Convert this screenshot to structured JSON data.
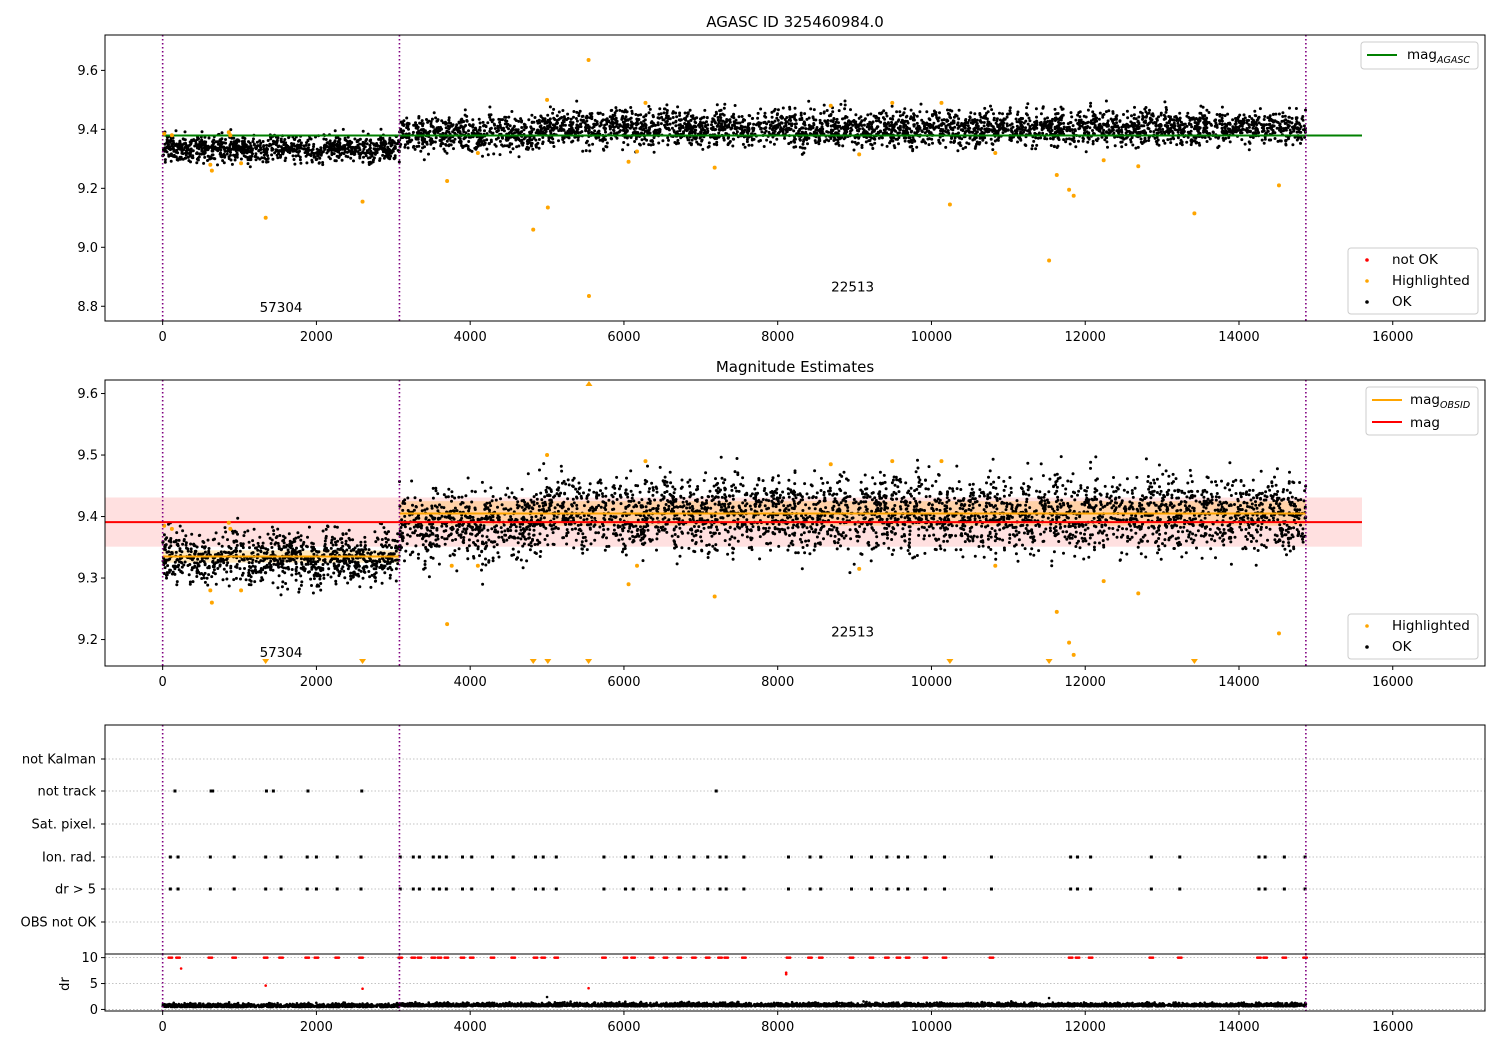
{
  "chart_data": [
    {
      "type": "scatter",
      "title": "AGASC ID 325460984.0",
      "xlim": [
        -750,
        17200
      ],
      "ylim": [
        8.75,
        9.72
      ],
      "x_ticks": [
        0,
        2000,
        4000,
        6000,
        8000,
        10000,
        12000,
        14000,
        16000
      ],
      "y_ticks": [
        8.8,
        9.0,
        9.2,
        9.4,
        9.6
      ],
      "y_tick_labels": [
        "8.8",
        "9.0",
        "9.2",
        "9.4",
        "9.6"
      ],
      "grid": false,
      "obs_boundaries": [
        0,
        3080,
        14870
      ],
      "obs_labels": [
        {
          "text": "57304",
          "x": 1540,
          "y": 8.78
        },
        {
          "text": "22513",
          "x": 8975,
          "y": 8.85
        }
      ],
      "lines": [
        {
          "name_main": "mag",
          "name_sub": "AGASC",
          "color": "#008000",
          "x": [
            0,
            15600
          ],
          "y": [
            9.379,
            9.379
          ]
        }
      ],
      "ok_segments": [
        {
          "x0": 0,
          "x1": 3080,
          "center": 9.335,
          "spread": 0.022
        },
        {
          "x0": 3080,
          "x1": 4800,
          "center": 9.385,
          "spread": 0.03
        },
        {
          "x0": 4800,
          "x1": 14870,
          "center": 9.405,
          "spread": 0.03
        }
      ],
      "highlighted": {
        "color": "#ffa500",
        "x": [
          20,
          120,
          620,
          640,
          860,
          880,
          1020,
          1340,
          2600,
          3700,
          4100,
          4820,
          5000,
          5010,
          5540,
          5545,
          6060,
          6170,
          6280,
          7180,
          8690,
          9060,
          9490,
          10130,
          10240,
          10830,
          11530,
          11630,
          11790,
          11850,
          12240,
          12690,
          13420,
          14520
        ],
        "y": [
          9.385,
          9.38,
          9.28,
          9.26,
          9.39,
          9.38,
          9.285,
          9.1,
          9.155,
          9.225,
          9.32,
          9.06,
          9.5,
          9.135,
          9.635,
          8.835,
          9.29,
          9.325,
          9.49,
          9.27,
          9.48,
          9.315,
          9.49,
          9.49,
          9.145,
          9.32,
          8.955,
          9.245,
          9.195,
          9.175,
          9.295,
          9.275,
          9.115,
          9.21
        ]
      },
      "legends": [
        {
          "position": "upper-right",
          "entries": [
            {
              "label_main": "mag",
              "label_sub": "AGASC",
              "kind": "line",
              "color": "#008000"
            }
          ]
        },
        {
          "position": "lower-right",
          "entries": [
            {
              "label_main": "not OK",
              "kind": "marker",
              "color": "#ff0000"
            },
            {
              "label_main": "Highlighted",
              "kind": "marker",
              "color": "#ffa500"
            },
            {
              "label_main": "OK",
              "kind": "marker",
              "color": "#000000"
            }
          ]
        }
      ]
    },
    {
      "type": "scatter",
      "title": "Magnitude Estimates",
      "xlim": [
        -750,
        17200
      ],
      "ylim": [
        9.157,
        9.622
      ],
      "x_ticks": [
        0,
        2000,
        4000,
        6000,
        8000,
        10000,
        12000,
        14000,
        16000
      ],
      "y_ticks": [
        9.2,
        9.3,
        9.4,
        9.5,
        9.6
      ],
      "y_tick_labels": [
        "9.2",
        "9.3",
        "9.4",
        "9.5",
        "9.6"
      ],
      "grid": false,
      "obs_boundaries": [
        0,
        3080,
        14870
      ],
      "obs_labels": [
        {
          "text": "57304",
          "x": 1540,
          "y": 9.172
        },
        {
          "text": "22513",
          "x": 8975,
          "y": 9.205
        }
      ],
      "bands": [
        {
          "color": "#ff0000",
          "opacity": 0.12,
          "x0": -750,
          "x1": 15600,
          "y0": 9.351,
          "y1": 9.431
        },
        {
          "color": "#ffa500",
          "opacity": 0.25,
          "x0": 0,
          "x1": 3080,
          "y0": 9.325,
          "y1": 9.345
        },
        {
          "color": "#ffa500",
          "opacity": 0.25,
          "x0": 3080,
          "x1": 14870,
          "y0": 9.385,
          "y1": 9.425
        }
      ],
      "lines": [
        {
          "name_main": "mag",
          "color": "#ff0000",
          "x": [
            -750,
            15600
          ],
          "y": [
            9.391,
            9.391
          ]
        },
        {
          "name_main": "mag",
          "name_sub": "OBSID",
          "color": "#ffa500",
          "x": [
            0,
            3080
          ],
          "y": [
            9.335,
            9.335
          ]
        },
        {
          "name_main": "mag",
          "name_sub": "OBSID",
          "color": "#ffa500",
          "x": [
            3080,
            14870
          ],
          "y": [
            9.405,
            9.405
          ]
        }
      ],
      "ok_segments": [
        {
          "x0": 0,
          "x1": 3080,
          "center": 9.333,
          "spread": 0.02
        },
        {
          "x0": 3080,
          "x1": 4800,
          "center": 9.385,
          "spread": 0.03
        },
        {
          "x0": 4800,
          "x1": 14870,
          "center": 9.405,
          "spread": 0.03
        }
      ],
      "highlighted": {
        "color": "#ffa500",
        "x": [
          20,
          120,
          620,
          640,
          860,
          880,
          1020,
          3700,
          3760,
          4100,
          5000,
          6060,
          6170,
          6280,
          7180,
          8690,
          9060,
          9490,
          10130,
          10830,
          11630,
          11790,
          11850,
          12240,
          12690,
          14520
        ],
        "y": [
          9.385,
          9.38,
          9.28,
          9.26,
          9.39,
          9.38,
          9.28,
          9.225,
          9.32,
          9.32,
          9.5,
          9.29,
          9.32,
          9.49,
          9.27,
          9.485,
          9.315,
          9.49,
          9.49,
          9.32,
          9.245,
          9.195,
          9.175,
          9.295,
          9.275,
          9.21
        ]
      },
      "off_scale_low": [
        1340,
        2600,
        4820,
        5010,
        5540,
        10240,
        11530,
        13420
      ],
      "off_scale_high": [
        5545
      ],
      "legends": [
        {
          "position": "upper-right",
          "entries": [
            {
              "label_main": "mag",
              "label_sub": "OBSID",
              "kind": "line",
              "color": "#ffa500"
            },
            {
              "label_main": "mag",
              "kind": "line",
              "color": "#ff0000"
            }
          ]
        },
        {
          "position": "lower-right",
          "entries": [
            {
              "label_main": "Highlighted",
              "kind": "marker",
              "color": "#ffa500"
            },
            {
              "label_main": "OK",
              "kind": "marker",
              "color": "#000000"
            }
          ]
        }
      ]
    },
    {
      "type": "scatter",
      "title": "",
      "xlim": [
        -750,
        17200
      ],
      "categories": [
        "not Kalman",
        "not track",
        "Sat. pixel.",
        "Ion. rad.",
        "dr > 5",
        "OBS not OK"
      ],
      "grid": true,
      "obs_boundaries": [
        0,
        3080,
        14870
      ],
      "flags": {
        "not Kalman": [],
        "not track": [
          160,
          630,
          650,
          1350,
          1440,
          1890,
          2590,
          7200
        ],
        "Sat. pixel.": [],
        "Ion. rad.": [
          100,
          200,
          620,
          930,
          1340,
          1540,
          1880,
          2000,
          2270,
          2580,
          3090,
          3260,
          3340,
          3520,
          3600,
          3690,
          3900,
          4020,
          4290,
          4560,
          4850,
          4950,
          5120,
          5740,
          6020,
          6120,
          6360,
          6540,
          6720,
          6910,
          7090,
          7250,
          7330,
          7560,
          8140,
          8420,
          8560,
          8960,
          9220,
          9420,
          9570,
          9690,
          9920,
          10170,
          10780,
          11810,
          11900,
          12070,
          12860,
          13230,
          14260,
          14340,
          14590,
          14860
        ],
        "dr > 5": [
          100,
          200,
          620,
          930,
          1340,
          1540,
          1880,
          2000,
          2270,
          2580,
          3090,
          3260,
          3340,
          3520,
          3600,
          3690,
          3900,
          4020,
          4290,
          4560,
          4850,
          4950,
          5120,
          5740,
          6020,
          6120,
          6360,
          6540,
          6720,
          6910,
          7090,
          7250,
          7330,
          7560,
          8140,
          8420,
          8560,
          8960,
          9220,
          9420,
          9570,
          9690,
          9920,
          10170,
          10780,
          11810,
          11900,
          12070,
          12860,
          13230,
          14260,
          14340,
          14590,
          14860
        ],
        "OBS not OK": []
      }
    },
    {
      "type": "scatter",
      "title": "",
      "xlim": [
        -750,
        17200
      ],
      "ylim": [
        -0.3,
        10.7
      ],
      "ylabel": "dr",
      "x_ticks": [
        0,
        2000,
        4000,
        6000,
        8000,
        10000,
        12000,
        14000,
        16000
      ],
      "y_ticks": [
        0,
        5,
        10
      ],
      "y_tick_labels": [
        "0",
        "5",
        "10"
      ],
      "grid": true,
      "obs_boundaries": [
        0,
        3080,
        14870
      ],
      "dr_ok": {
        "center": 0.45,
        "spread": 0.35,
        "color": "#000000"
      },
      "dr_not_ok": {
        "color": "#ff0000",
        "clipped_value": 10,
        "clipped_x": [
          100,
          200,
          620,
          930,
          1340,
          1540,
          1880,
          2000,
          2270,
          2580,
          3090,
          3260,
          3340,
          3520,
          3600,
          3690,
          3900,
          4020,
          4290,
          4560,
          4850,
          4950,
          5120,
          5740,
          6020,
          6120,
          6360,
          6540,
          6720,
          6910,
          7090,
          7250,
          7330,
          7560,
          8140,
          8420,
          8560,
          8960,
          9220,
          9420,
          9570,
          9690,
          9920,
          10170,
          10780,
          11810,
          11900,
          12070,
          12860,
          13230,
          14260,
          14340,
          14590,
          14860
        ],
        "x": [
          240,
          1340,
          2600,
          5540,
          8110,
          8110
        ],
        "y": [
          7.9,
          4.6,
          4.0,
          4.1,
          6.8,
          7.1
        ]
      },
      "dr_outliers": {
        "color": "#000000",
        "x": [
          5000,
          11530
        ],
        "y": [
          2.4,
          2.2
        ]
      }
    }
  ]
}
